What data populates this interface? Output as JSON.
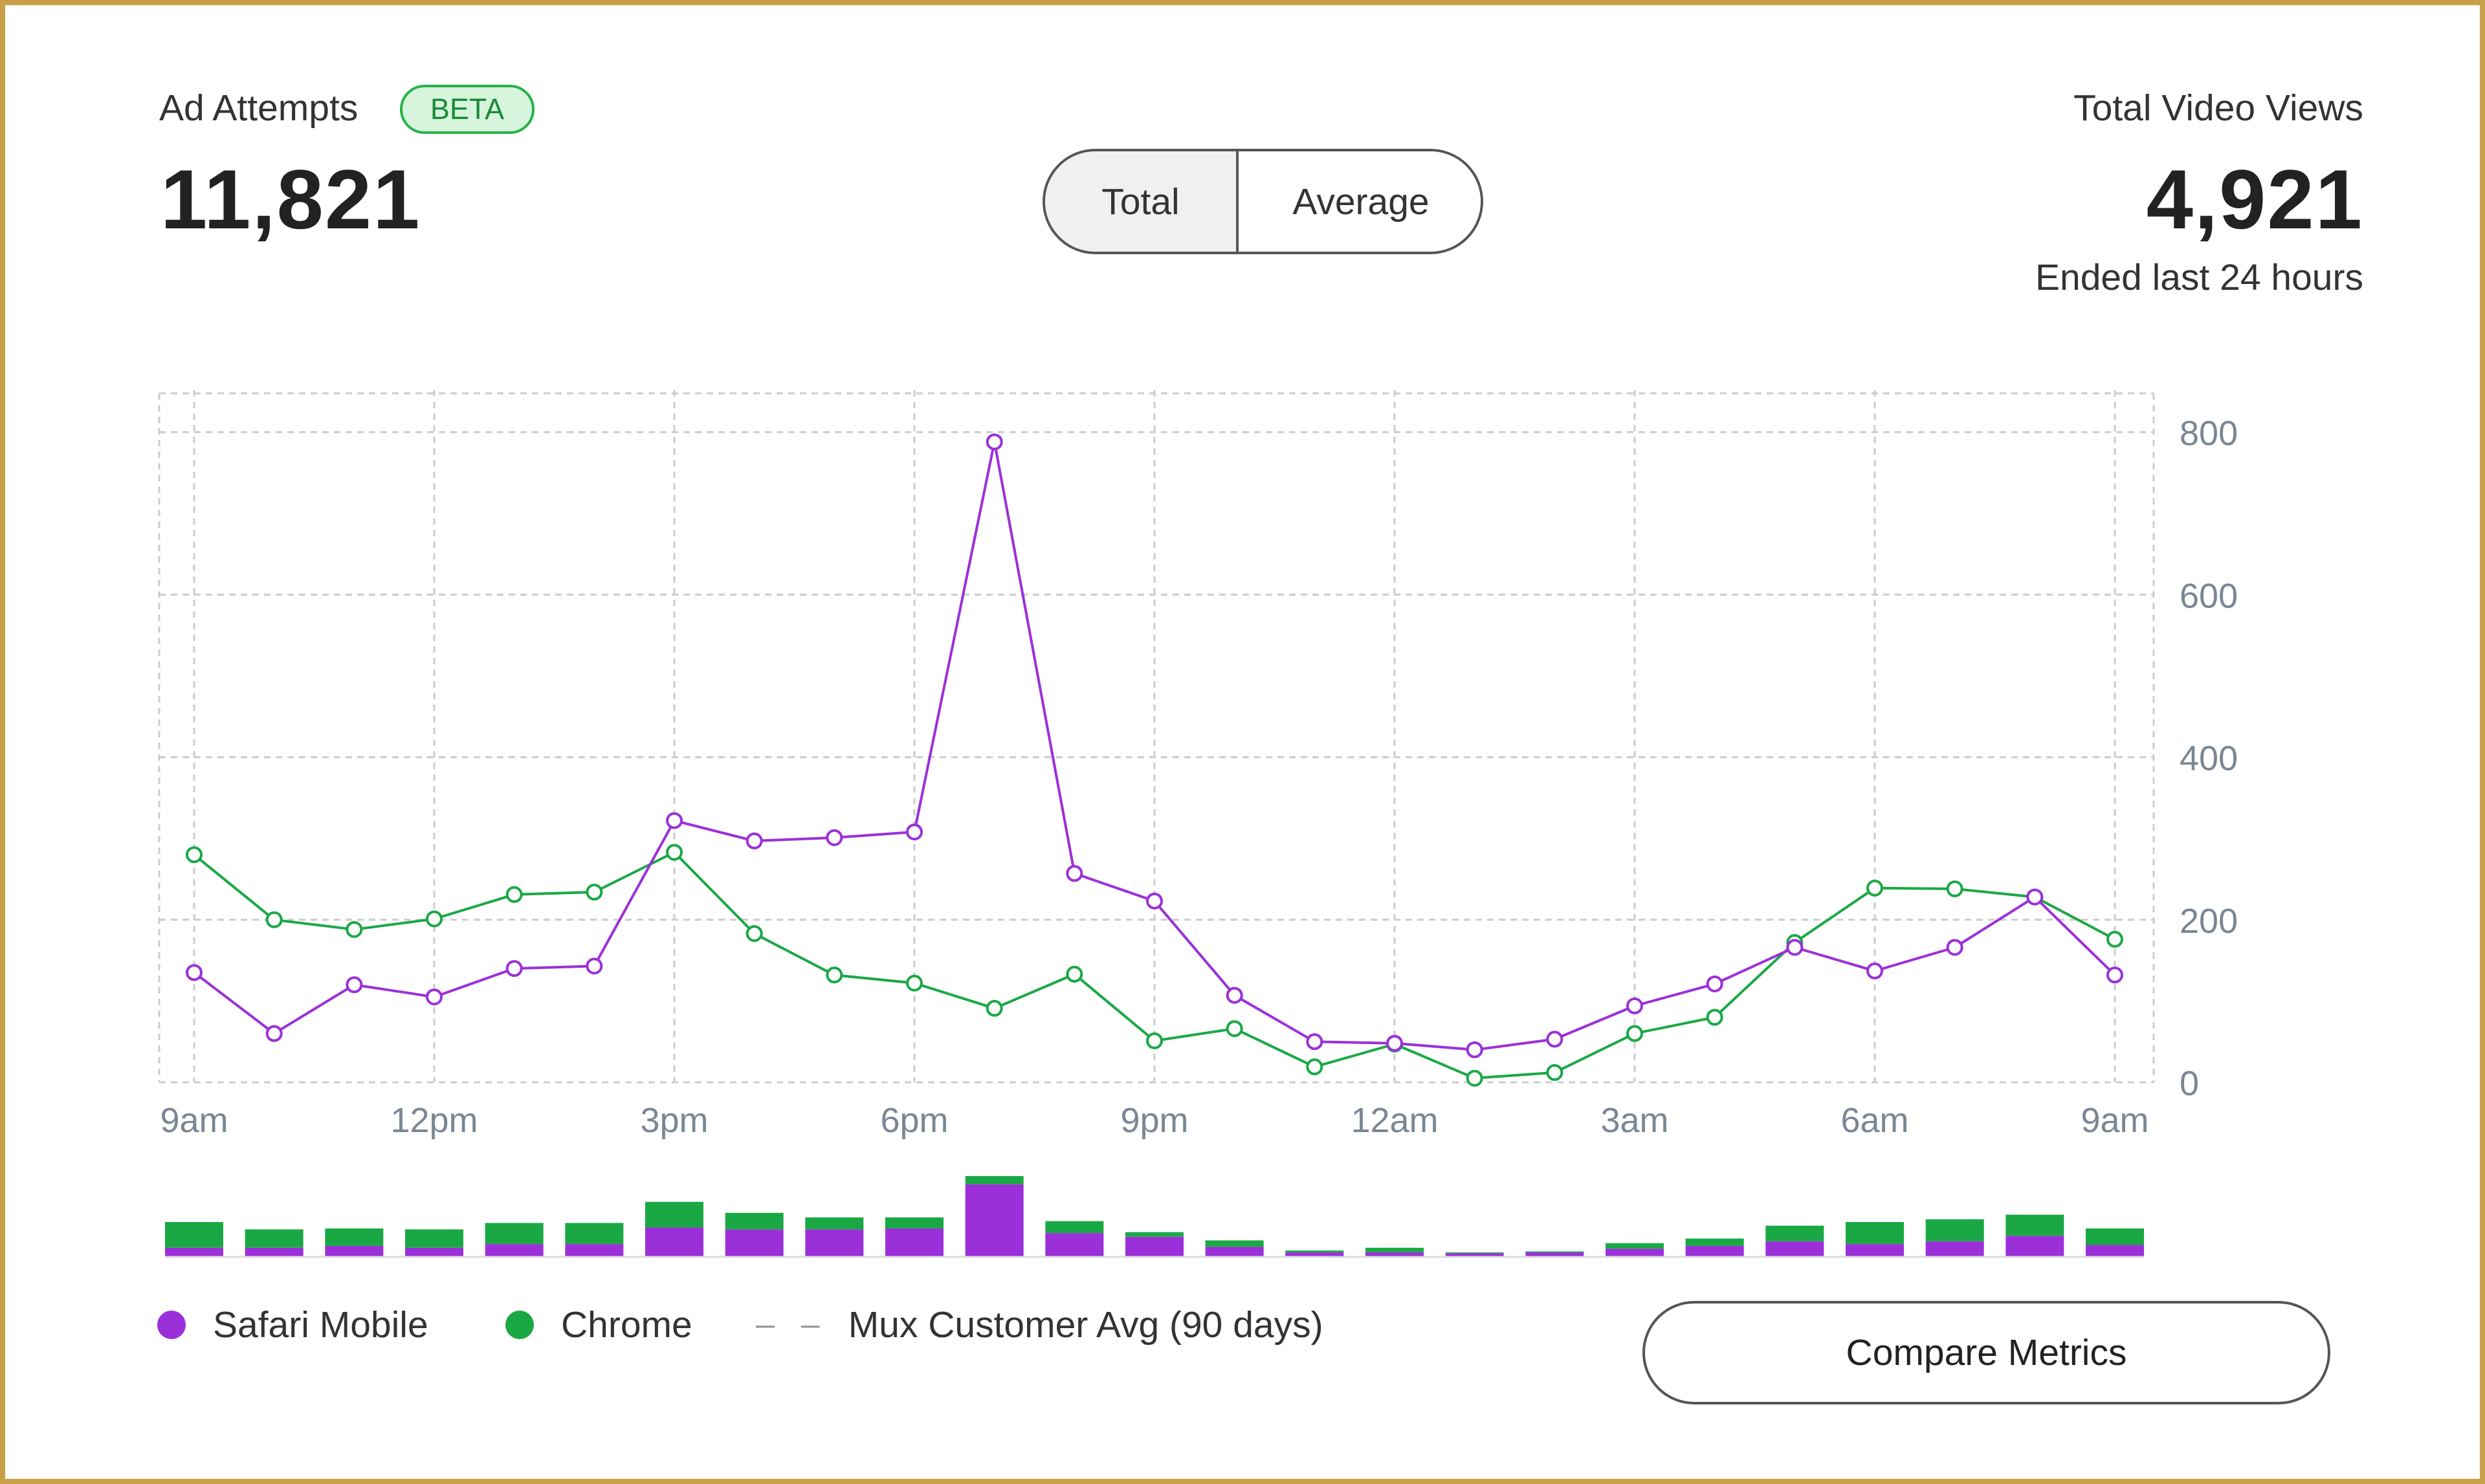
{
  "left_metric": {
    "label": "Ad Attempts",
    "badge": "BETA",
    "value": "11,821"
  },
  "toggle": {
    "options": [
      "Total",
      "Average"
    ],
    "selected": "Total"
  },
  "right_metric": {
    "label": "Total Video Views",
    "value": "4,921",
    "subtitle": "Ended last 24 hours"
  },
  "compare_button": "Compare Metrics",
  "legend": [
    {
      "label": "Safari Mobile",
      "color": "#9b30d9",
      "marker": "dot"
    },
    {
      "label": "Chrome",
      "color": "#1aa845",
      "marker": "dot"
    },
    {
      "label": "Mux Customer Avg (90 days)",
      "color": "#999999",
      "marker": "dash",
      "dash_glyph": "– –"
    }
  ],
  "chart_data": {
    "type": "line",
    "x_ticks": [
      "9am",
      "12pm",
      "3pm",
      "6pm",
      "9pm",
      "12am",
      "3am",
      "6am",
      "9am"
    ],
    "y_ticks": [
      0,
      200,
      400,
      600,
      800
    ],
    "ylim": [
      0,
      800
    ],
    "grid": true,
    "colors": {
      "safari": "#9b30d9",
      "chrome": "#1aa845",
      "grid": "#cccccc",
      "axis_text": "#7a8694"
    },
    "series": [
      {
        "name": "Safari Mobile",
        "color": "#9b30d9",
        "values": [
          135,
          60,
          120,
          105,
          140,
          143,
          322,
          297,
          301,
          308,
          788,
          257,
          223,
          107,
          50,
          48,
          40,
          53,
          94,
          121,
          166,
          137,
          166,
          228,
          132
        ]
      },
      {
        "name": "Chrome",
        "color": "#1aa845",
        "values": [
          280,
          200,
          188,
          201,
          231,
          234,
          283,
          183,
          132,
          122,
          91,
          133,
          51,
          66,
          19,
          47,
          5,
          12,
          60,
          80,
          172,
          239,
          238,
          228,
          176
        ]
      }
    ],
    "volume_bars": {
      "safari": [
        10,
        10,
        12,
        10,
        14,
        14,
        32,
        30,
        30,
        31,
        79,
        26,
        22,
        11,
        5,
        5,
        4,
        5,
        9,
        12,
        17,
        14,
        17,
        23,
        13
      ],
      "chrome": [
        28,
        20,
        19,
        20,
        23,
        23,
        28,
        18,
        13,
        12,
        9,
        13,
        5,
        7,
        2,
        5,
        1,
        1,
        6,
        8,
        17,
        24,
        24,
        23,
        18
      ]
    }
  }
}
